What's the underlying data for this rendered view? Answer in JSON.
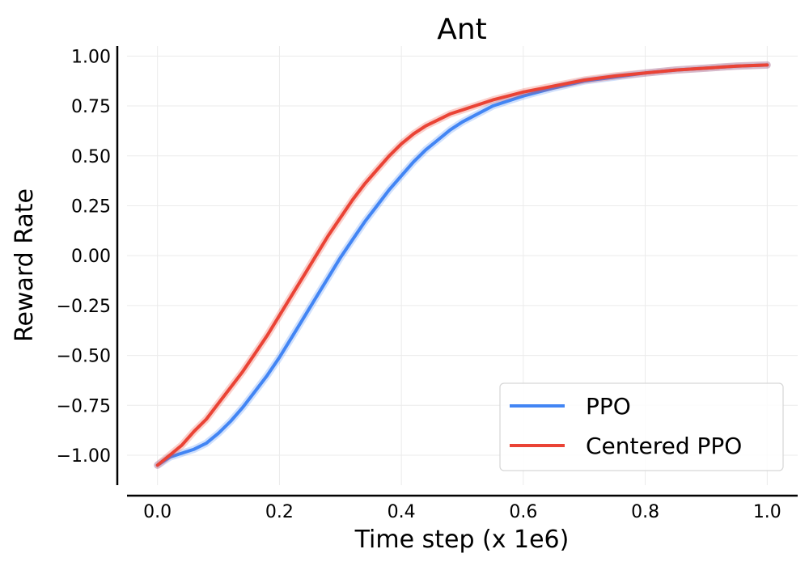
{
  "chart_data": {
    "type": "line",
    "title": "Ant",
    "xlabel": "Time step (x 1e6)",
    "ylabel": "Reward Rate",
    "xlim": [
      -0.05,
      1.05
    ],
    "ylim": [
      -1.15,
      1.05
    ],
    "xticks": [
      0.0,
      0.2,
      0.4,
      0.6,
      0.8,
      1.0
    ],
    "xtick_labels": [
      "0.0",
      "0.2",
      "0.4",
      "0.6",
      "0.8",
      "1.0"
    ],
    "yticks": [
      1.0,
      0.75,
      0.5,
      0.25,
      0.0,
      -0.25,
      -0.5,
      -0.75,
      -1.0
    ],
    "ytick_labels": [
      "1.00",
      "0.75",
      "0.50",
      "0.25",
      "0.00",
      "−0.25",
      "−0.50",
      "−0.75",
      "−1.00"
    ],
    "grid": true,
    "legend_position": "bottom-right",
    "series": [
      {
        "name": "PPO",
        "color": "#4285f4",
        "x": [
          0.0,
          0.02,
          0.04,
          0.06,
          0.08,
          0.1,
          0.12,
          0.14,
          0.16,
          0.18,
          0.2,
          0.22,
          0.24,
          0.26,
          0.28,
          0.3,
          0.32,
          0.34,
          0.36,
          0.38,
          0.4,
          0.42,
          0.44,
          0.46,
          0.48,
          0.5,
          0.55,
          0.6,
          0.65,
          0.7,
          0.75,
          0.8,
          0.85,
          0.9,
          0.95,
          1.0
        ],
        "y": [
          -1.05,
          -1.01,
          -0.99,
          -0.97,
          -0.94,
          -0.89,
          -0.83,
          -0.76,
          -0.68,
          -0.6,
          -0.51,
          -0.41,
          -0.31,
          -0.21,
          -0.11,
          -0.01,
          0.08,
          0.17,
          0.25,
          0.33,
          0.4,
          0.47,
          0.53,
          0.58,
          0.63,
          0.67,
          0.75,
          0.8,
          0.84,
          0.875,
          0.895,
          0.915,
          0.93,
          0.94,
          0.95,
          0.955
        ]
      },
      {
        "name": "Centered PPO",
        "color": "#ea4335",
        "x": [
          0.0,
          0.02,
          0.04,
          0.06,
          0.08,
          0.1,
          0.12,
          0.14,
          0.16,
          0.18,
          0.2,
          0.22,
          0.24,
          0.26,
          0.28,
          0.3,
          0.32,
          0.34,
          0.36,
          0.38,
          0.4,
          0.42,
          0.44,
          0.46,
          0.48,
          0.5,
          0.55,
          0.6,
          0.65,
          0.7,
          0.75,
          0.8,
          0.85,
          0.9,
          0.95,
          1.0
        ],
        "y": [
          -1.05,
          -1.0,
          -0.95,
          -0.88,
          -0.82,
          -0.74,
          -0.66,
          -0.58,
          -0.49,
          -0.4,
          -0.3,
          -0.2,
          -0.1,
          0.0,
          0.1,
          0.19,
          0.28,
          0.36,
          0.43,
          0.5,
          0.56,
          0.61,
          0.65,
          0.68,
          0.71,
          0.73,
          0.78,
          0.82,
          0.85,
          0.88,
          0.9,
          0.915,
          0.93,
          0.94,
          0.95,
          0.955
        ]
      }
    ]
  }
}
